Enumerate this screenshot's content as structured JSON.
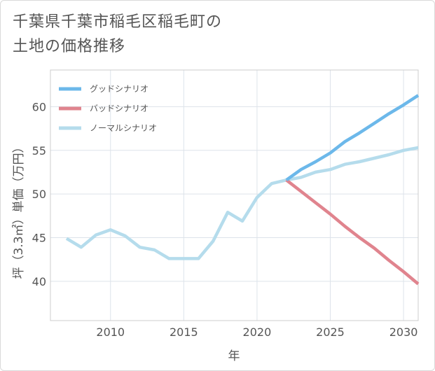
{
  "title_line1": "千葉県千葉市稲毛区稲毛町の",
  "title_line2": "土地の価格推移",
  "chart_data": {
    "type": "line",
    "xlabel": "年",
    "ylabel": "坪（3.3㎡）単価（万円）",
    "xlim": [
      2005.9,
      2031
    ],
    "ylim": [
      35.5,
      64.2
    ],
    "x_ticks": [
      2010,
      2015,
      2020,
      2025,
      2030
    ],
    "y_ticks": [
      40,
      45,
      50,
      55,
      60
    ],
    "grid": true,
    "legend_position": "top-left",
    "series": [
      {
        "name": "グッドシナリオ",
        "color": "#6cb8ea",
        "x": [
          2022,
          2023,
          2024,
          2025,
          2026,
          2027,
          2028,
          2029,
          2030,
          2031
        ],
        "y": [
          51.6,
          52.8,
          53.7,
          54.7,
          56.0,
          57.0,
          58.1,
          59.2,
          60.2,
          61.3
        ]
      },
      {
        "name": "バッドシナリオ",
        "color": "#e0848e",
        "x": [
          2022,
          2023,
          2024,
          2025,
          2026,
          2027,
          2028,
          2029,
          2030,
          2031
        ],
        "y": [
          51.6,
          50.3,
          49.0,
          47.7,
          46.3,
          45.0,
          43.8,
          42.4,
          41.1,
          39.7
        ]
      },
      {
        "name": "ノーマルシナリオ",
        "color": "#b5dcec",
        "x": [
          2007,
          2008,
          2009,
          2010,
          2011,
          2012,
          2013,
          2014,
          2015,
          2016,
          2017,
          2018,
          2019,
          2020,
          2021,
          2022,
          2023,
          2024,
          2025,
          2026,
          2027,
          2028,
          2029,
          2030,
          2031
        ],
        "y": [
          44.9,
          43.9,
          45.3,
          45.9,
          45.2,
          43.9,
          43.6,
          42.6,
          42.6,
          42.6,
          44.6,
          47.9,
          46.9,
          49.6,
          51.2,
          51.6,
          51.9,
          52.5,
          52.8,
          53.4,
          53.7,
          54.1,
          54.5,
          55.0,
          55.3
        ]
      }
    ]
  }
}
